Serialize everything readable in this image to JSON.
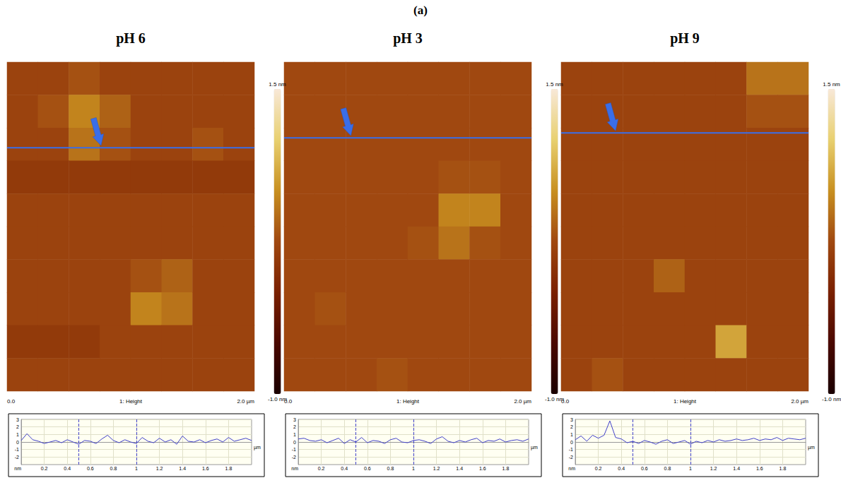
{
  "figure_title": "(a)",
  "chart_data": [
    {
      "type": "afm",
      "title": "pH 6",
      "height_map": {
        "xlim": [
          0,
          2
        ],
        "ylim": [
          0,
          2
        ],
        "values": [
          [
            0.2,
            0.2,
            0.3,
            0.2,
            0.2,
            0.2,
            0.2,
            0.2
          ],
          [
            0.2,
            0.3,
            0.6,
            0.4,
            0.2,
            0.2,
            0.2,
            0.2
          ],
          [
            0.2,
            0.2,
            0.5,
            0.3,
            0.2,
            0.2,
            0.3,
            0.2
          ],
          [
            0.1,
            0.1,
            0.1,
            0.1,
            0.1,
            0.1,
            0.1,
            0.1
          ],
          [
            0.2,
            0.2,
            0.2,
            0.2,
            0.2,
            0.2,
            0.2,
            0.2
          ],
          [
            0.2,
            0.2,
            0.2,
            0.2,
            0.2,
            0.2,
            0.2,
            0.2
          ],
          [
            0.2,
            0.2,
            0.2,
            0.2,
            0.3,
            0.4,
            0.2,
            0.2
          ],
          [
            0.2,
            0.2,
            0.2,
            0.2,
            0.6,
            0.5,
            0.2,
            0.2
          ],
          [
            0.1,
            0.1,
            0.1,
            0.2,
            0.2,
            0.2,
            0.2,
            0.2
          ],
          [
            0.2,
            0.2,
            0.2,
            0.2,
            0.2,
            0.2,
            0.2,
            0.2
          ]
        ],
        "colorbar_range": [
          -1.0,
          1.5
        ],
        "colorbar_ticks": [
          {
            "value": 1.5,
            "label": "1.5 nm"
          },
          {
            "value": -1.0,
            "label": "-1.0 nm"
          }
        ],
        "axis_labels": [
          "0.0",
          "1: Height",
          "2.0 µm"
        ],
        "scan_line_y": 0.52
      },
      "profile": {
        "type": "line",
        "color": "#4040c8",
        "grid": true,
        "x": [
          0,
          0.05,
          0.1,
          0.15,
          0.2,
          0.25,
          0.3,
          0.35,
          0.4,
          0.45,
          0.5,
          0.55,
          0.6,
          0.65,
          0.7,
          0.75,
          0.8,
          0.85,
          0.9,
          0.95,
          1,
          1.05,
          1.1,
          1.15,
          1.2,
          1.25,
          1.3,
          1.35,
          1.4,
          1.45,
          1.5,
          1.55,
          1.6,
          1.65,
          1.7,
          1.75,
          1.8,
          1.85,
          1.9,
          1.95,
          2
        ],
        "values": [
          0.2,
          1.1,
          0.3,
          0.1,
          -0.2,
          0.0,
          0.2,
          -0.1,
          0.3,
          0.0,
          -0.3,
          0.2,
          0.1,
          -0.2,
          0.4,
          0.9,
          0.2,
          -0.1,
          0.3,
          0.0,
          -0.2,
          0.6,
          0.1,
          -0.1,
          0.5,
          0.0,
          0.3,
          -0.3,
          0.8,
          0.1,
          0.0,
          0.3,
          -0.1,
          0.2,
          0.4,
          0.0,
          0.6,
          0.1,
          0.3,
          0.5,
          0.2
        ],
        "xlim": [
          0,
          2
        ],
        "ylim": [
          -3,
          3
        ],
        "xticks": [
          0.2,
          0.4,
          0.6,
          0.8,
          1,
          1.2,
          1.4,
          1.6,
          1.8
        ],
        "yticks": [
          -2,
          -1,
          0,
          1,
          2,
          3
        ],
        "x_label": "µm",
        "y_label": "nm",
        "cursors": [
          0.5,
          1.0
        ]
      }
    },
    {
      "type": "afm",
      "title": "pH 3",
      "height_map": {
        "xlim": [
          0,
          2
        ],
        "ylim": [
          0,
          2
        ],
        "values": [
          [
            0.25,
            0.25,
            0.25,
            0.25,
            0.25,
            0.25,
            0.25,
            0.25
          ],
          [
            0.25,
            0.25,
            0.25,
            0.25,
            0.25,
            0.25,
            0.25,
            0.25
          ],
          [
            0.25,
            0.25,
            0.25,
            0.25,
            0.25,
            0.25,
            0.25,
            0.25
          ],
          [
            0.25,
            0.25,
            0.25,
            0.25,
            0.25,
            0.3,
            0.3,
            0.25
          ],
          [
            0.25,
            0.25,
            0.25,
            0.25,
            0.25,
            0.6,
            0.6,
            0.25
          ],
          [
            0.25,
            0.25,
            0.25,
            0.25,
            0.3,
            0.5,
            0.3,
            0.25
          ],
          [
            0.25,
            0.25,
            0.25,
            0.25,
            0.25,
            0.25,
            0.25,
            0.25
          ],
          [
            0.25,
            0.3,
            0.25,
            0.25,
            0.25,
            0.25,
            0.25,
            0.25
          ],
          [
            0.25,
            0.25,
            0.25,
            0.25,
            0.25,
            0.25,
            0.25,
            0.25
          ],
          [
            0.25,
            0.25,
            0.25,
            0.3,
            0.25,
            0.25,
            0.25,
            0.25
          ]
        ],
        "colorbar_range": [
          -1.0,
          1.5
        ],
        "colorbar_ticks": [
          {
            "value": 1.5,
            "label": "1.5 nm"
          },
          {
            "value": -1.0,
            "label": "-1.0 nm"
          }
        ],
        "axis_labels": [
          "0.0",
          "1: Height",
          "2.0 µm"
        ],
        "scan_line_y": 0.46
      },
      "profile": {
        "type": "line",
        "color": "#4040c8",
        "grid": true,
        "x": [
          0,
          0.05,
          0.1,
          0.15,
          0.2,
          0.25,
          0.3,
          0.35,
          0.4,
          0.45,
          0.5,
          0.55,
          0.6,
          0.65,
          0.7,
          0.75,
          0.8,
          0.85,
          0.9,
          0.95,
          1,
          1.05,
          1.1,
          1.15,
          1.2,
          1.25,
          1.3,
          1.35,
          1.4,
          1.45,
          1.5,
          1.55,
          1.6,
          1.65,
          1.7,
          1.75,
          1.8,
          1.85,
          1.9,
          1.95,
          2
        ],
        "values": [
          0.4,
          0.5,
          0.2,
          0.1,
          0.3,
          -0.1,
          0.2,
          0.5,
          -0.2,
          0.3,
          0.0,
          0.6,
          -0.1,
          0.2,
          0.1,
          -0.2,
          0.3,
          0.5,
          0.0,
          -0.1,
          0.2,
          0.3,
          0.1,
          -0.2,
          0.4,
          0.7,
          0.1,
          -0.1,
          0.2,
          0.0,
          0.3,
          0.5,
          -0.1,
          0.2,
          0.1,
          0.4,
          0.0,
          0.2,
          0.3,
          0.1,
          0.4
        ],
        "xlim": [
          0,
          2
        ],
        "ylim": [
          -3,
          3
        ],
        "xticks": [
          0.2,
          0.4,
          0.6,
          0.8,
          1,
          1.2,
          1.4,
          1.6,
          1.8
        ],
        "yticks": [
          -2,
          -1,
          0,
          1,
          2,
          3
        ],
        "x_label": "µm",
        "y_label": "nm",
        "cursors": [
          0.5,
          1.0
        ]
      }
    },
    {
      "type": "afm",
      "title": "pH 9",
      "height_map": {
        "xlim": [
          0,
          2
        ],
        "ylim": [
          0,
          2
        ],
        "values": [
          [
            0.2,
            0.2,
            0.2,
            0.2,
            0.2,
            0.2,
            0.5,
            0.5
          ],
          [
            0.2,
            0.2,
            0.2,
            0.2,
            0.2,
            0.2,
            0.3,
            0.3
          ],
          [
            0.2,
            0.2,
            0.2,
            0.2,
            0.2,
            0.2,
            0.2,
            0.2
          ],
          [
            0.2,
            0.2,
            0.2,
            0.2,
            0.2,
            0.2,
            0.2,
            0.2
          ],
          [
            0.2,
            0.2,
            0.2,
            0.2,
            0.2,
            0.2,
            0.2,
            0.2
          ],
          [
            0.2,
            0.2,
            0.2,
            0.2,
            0.2,
            0.2,
            0.2,
            0.2
          ],
          [
            0.2,
            0.2,
            0.2,
            0.4,
            0.2,
            0.2,
            0.2,
            0.2
          ],
          [
            0.2,
            0.2,
            0.2,
            0.2,
            0.2,
            0.2,
            0.2,
            0.2
          ],
          [
            0.2,
            0.2,
            0.2,
            0.2,
            0.2,
            0.8,
            0.2,
            0.2
          ],
          [
            0.2,
            0.3,
            0.2,
            0.2,
            0.2,
            0.2,
            0.2,
            0.2
          ]
        ],
        "colorbar_range": [
          -1.0,
          1.5
        ],
        "colorbar_ticks": [
          {
            "value": 1.5,
            "label": "1.5 nm"
          },
          {
            "value": -1.0,
            "label": "-1.0 nm"
          }
        ],
        "axis_labels": [
          "0.0",
          "1: Height",
          "2.0 µm"
        ],
        "scan_line_y": 0.43
      },
      "profile": {
        "type": "line",
        "color": "#4040c8",
        "grid": true,
        "x": [
          0,
          0.05,
          0.1,
          0.15,
          0.2,
          0.25,
          0.3,
          0.35,
          0.4,
          0.45,
          0.5,
          0.55,
          0.6,
          0.65,
          0.7,
          0.75,
          0.8,
          0.85,
          0.9,
          0.95,
          1,
          1.05,
          1.1,
          1.15,
          1.2,
          1.25,
          1.3,
          1.35,
          1.4,
          1.45,
          1.5,
          1.55,
          1.6,
          1.65,
          1.7,
          1.75,
          1.8,
          1.85,
          1.9,
          1.95,
          2
        ],
        "values": [
          0.3,
          0.8,
          0.1,
          0.9,
          0.5,
          0.9,
          2.8,
          0.6,
          0.4,
          -0.1,
          0.1,
          -0.2,
          0.2,
          0.0,
          -0.3,
          0.1,
          0.3,
          -0.2,
          0.0,
          0.2,
          -0.3,
          0.1,
          -0.1,
          0.2,
          0.0,
          0.3,
          0.1,
          0.2,
          0.4,
          0.2,
          0.3,
          0.5,
          0.2,
          0.4,
          0.3,
          0.6,
          0.2,
          0.5,
          0.4,
          0.3,
          0.5
        ],
        "xlim": [
          0,
          2
        ],
        "ylim": [
          -3,
          3
        ],
        "xticks": [
          0.2,
          0.4,
          0.6,
          0.8,
          1,
          1.2,
          1.4,
          1.6,
          1.8
        ],
        "yticks": [
          -2,
          -1,
          0,
          1,
          2,
          3
        ],
        "x_label": "µm",
        "y_label": "nm",
        "cursors": [
          0.5,
          1.0
        ]
      }
    }
  ]
}
